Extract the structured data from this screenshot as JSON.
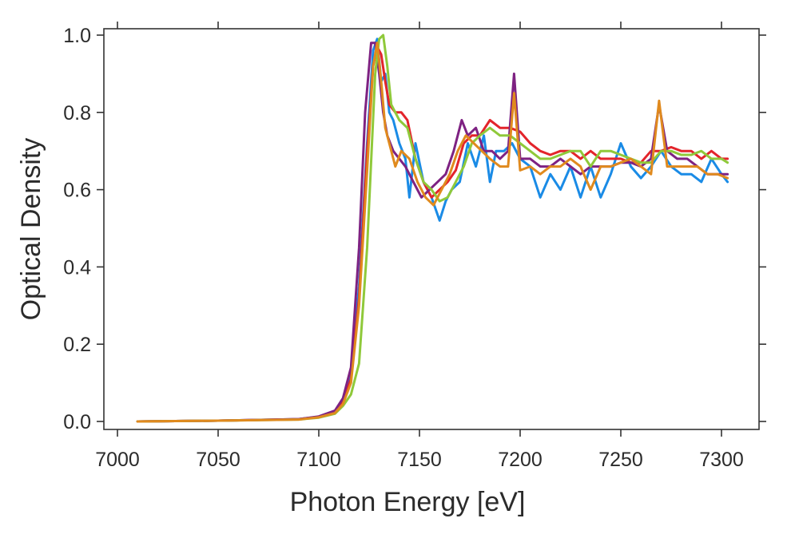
{
  "chart_data": {
    "type": "line",
    "title": "",
    "xlabel": "Photon Energy [eV]",
    "ylabel": "Optical Density",
    "xlim": [
      6997,
      7320
    ],
    "ylim": [
      -0.02,
      1.0
    ],
    "xticks": [
      7000,
      7050,
      7100,
      7150,
      7200,
      7250,
      7300
    ],
    "yticks": [
      0.0,
      0.2,
      0.4,
      0.6,
      0.8,
      1.0
    ],
    "xtick_labels": [
      "7000",
      "7050",
      "7100",
      "7150",
      "7200",
      "7250",
      "7300"
    ],
    "ytick_labels": [
      "0.0",
      "0.2",
      "0.4",
      "0.6",
      "0.8",
      "1.0"
    ],
    "grid": false,
    "legend": "none",
    "series": [
      {
        "name": "blue",
        "color": "#1a8be6",
        "x": [
          7010,
          7050,
          7090,
          7100,
          7108,
          7112,
          7116,
          7120,
          7124,
          7127,
          7129,
          7131,
          7133,
          7135,
          7137,
          7140,
          7143,
          7145,
          7148,
          7152,
          7156,
          7160,
          7163,
          7166,
          7170,
          7174,
          7178,
          7182,
          7185,
          7188,
          7192,
          7196,
          7200,
          7205,
          7210,
          7215,
          7220,
          7225,
          7230,
          7235,
          7240,
          7245,
          7250,
          7255,
          7260,
          7265,
          7270,
          7275,
          7280,
          7285,
          7290,
          7295,
          7300,
          7303
        ],
        "y": [
          0.0,
          0.002,
          0.006,
          0.012,
          0.025,
          0.05,
          0.12,
          0.35,
          0.72,
          0.96,
          0.99,
          0.88,
          0.9,
          0.8,
          0.78,
          0.72,
          0.68,
          0.58,
          0.72,
          0.62,
          0.58,
          0.52,
          0.57,
          0.6,
          0.62,
          0.72,
          0.66,
          0.74,
          0.62,
          0.7,
          0.7,
          0.72,
          0.68,
          0.66,
          0.58,
          0.64,
          0.6,
          0.66,
          0.58,
          0.66,
          0.58,
          0.64,
          0.72,
          0.66,
          0.63,
          0.66,
          0.7,
          0.66,
          0.64,
          0.64,
          0.62,
          0.68,
          0.64,
          0.62
        ]
      },
      {
        "name": "red",
        "color": "#e3242b",
        "x": [
          7010,
          7050,
          7090,
          7100,
          7108,
          7112,
          7116,
          7120,
          7124,
          7127,
          7129,
          7131,
          7133,
          7135,
          7138,
          7141,
          7144,
          7148,
          7152,
          7156,
          7160,
          7164,
          7168,
          7172,
          7176,
          7180,
          7185,
          7190,
          7195,
          7200,
          7205,
          7210,
          7215,
          7220,
          7225,
          7230,
          7235,
          7240,
          7245,
          7250,
          7255,
          7260,
          7265,
          7270,
          7275,
          7280,
          7285,
          7290,
          7295,
          7300,
          7303
        ],
        "y": [
          0.0,
          0.002,
          0.006,
          0.012,
          0.025,
          0.05,
          0.11,
          0.32,
          0.7,
          0.92,
          0.97,
          0.95,
          0.88,
          0.82,
          0.8,
          0.8,
          0.78,
          0.68,
          0.62,
          0.58,
          0.6,
          0.62,
          0.65,
          0.72,
          0.74,
          0.74,
          0.78,
          0.76,
          0.76,
          0.75,
          0.72,
          0.7,
          0.69,
          0.7,
          0.7,
          0.68,
          0.7,
          0.68,
          0.68,
          0.68,
          0.67,
          0.67,
          0.7,
          0.7,
          0.71,
          0.7,
          0.7,
          0.68,
          0.7,
          0.68,
          0.68
        ]
      },
      {
        "name": "purple",
        "color": "#7e2282",
        "x": [
          7010,
          7050,
          7090,
          7100,
          7108,
          7112,
          7116,
          7120,
          7123,
          7126,
          7128,
          7130,
          7132,
          7134,
          7137,
          7140,
          7143,
          7147,
          7151,
          7155,
          7159,
          7163,
          7167,
          7171,
          7174,
          7178,
          7182,
          7186,
          7190,
          7194,
          7197,
          7200,
          7205,
          7210,
          7215,
          7220,
          7225,
          7230,
          7235,
          7240,
          7245,
          7250,
          7255,
          7260,
          7265,
          7269,
          7273,
          7278,
          7283,
          7288,
          7293,
          7298,
          7303
        ],
        "y": [
          0.0,
          0.002,
          0.006,
          0.013,
          0.028,
          0.06,
          0.14,
          0.45,
          0.8,
          0.98,
          0.98,
          0.9,
          0.8,
          0.74,
          0.7,
          0.68,
          0.66,
          0.62,
          0.58,
          0.6,
          0.62,
          0.64,
          0.7,
          0.78,
          0.74,
          0.76,
          0.7,
          0.7,
          0.68,
          0.7,
          0.9,
          0.68,
          0.68,
          0.66,
          0.66,
          0.68,
          0.66,
          0.64,
          0.66,
          0.66,
          0.66,
          0.67,
          0.67,
          0.66,
          0.68,
          0.82,
          0.7,
          0.68,
          0.68,
          0.66,
          0.64,
          0.64,
          0.64
        ]
      },
      {
        "name": "green",
        "color": "#8fc93a",
        "x": [
          7010,
          7050,
          7090,
          7100,
          7108,
          7112,
          7116,
          7120,
          7124,
          7128,
          7130,
          7132,
          7134,
          7136,
          7140,
          7144,
          7148,
          7152,
          7156,
          7160,
          7164,
          7168,
          7172,
          7176,
          7180,
          7185,
          7190,
          7195,
          7200,
          7205,
          7210,
          7215,
          7220,
          7225,
          7230,
          7235,
          7240,
          7245,
          7250,
          7255,
          7260,
          7265,
          7270,
          7275,
          7280,
          7285,
          7290,
          7295,
          7300,
          7303
        ],
        "y": [
          0.0,
          0.002,
          0.005,
          0.01,
          0.02,
          0.04,
          0.07,
          0.15,
          0.45,
          0.9,
          0.99,
          1.0,
          0.92,
          0.82,
          0.78,
          0.76,
          0.68,
          0.62,
          0.6,
          0.57,
          0.58,
          0.62,
          0.66,
          0.72,
          0.74,
          0.76,
          0.74,
          0.74,
          0.72,
          0.7,
          0.68,
          0.68,
          0.69,
          0.7,
          0.7,
          0.66,
          0.7,
          0.7,
          0.69,
          0.68,
          0.67,
          0.67,
          0.7,
          0.7,
          0.69,
          0.69,
          0.7,
          0.68,
          0.68,
          0.67
        ]
      },
      {
        "name": "orange",
        "color": "#e08a1e",
        "x": [
          7010,
          7050,
          7090,
          7100,
          7108,
          7112,
          7116,
          7120,
          7124,
          7127,
          7129,
          7131,
          7133,
          7135,
          7138,
          7141,
          7145,
          7149,
          7153,
          7157,
          7161,
          7165,
          7169,
          7173,
          7177,
          7181,
          7185,
          7190,
          7194,
          7197,
          7200,
          7205,
          7210,
          7215,
          7220,
          7225,
          7230,
          7235,
          7240,
          7245,
          7250,
          7255,
          7260,
          7265,
          7269,
          7273,
          7278,
          7283,
          7288,
          7293,
          7298,
          7303
        ],
        "y": [
          0.0,
          0.002,
          0.005,
          0.011,
          0.022,
          0.045,
          0.1,
          0.3,
          0.65,
          0.92,
          0.98,
          0.88,
          0.76,
          0.72,
          0.66,
          0.7,
          0.68,
          0.62,
          0.58,
          0.56,
          0.6,
          0.64,
          0.7,
          0.74,
          0.72,
          0.7,
          0.68,
          0.66,
          0.66,
          0.85,
          0.65,
          0.66,
          0.64,
          0.66,
          0.66,
          0.68,
          0.66,
          0.6,
          0.66,
          0.66,
          0.67,
          0.68,
          0.66,
          0.64,
          0.83,
          0.66,
          0.66,
          0.66,
          0.66,
          0.64,
          0.64,
          0.63
        ]
      }
    ]
  }
}
